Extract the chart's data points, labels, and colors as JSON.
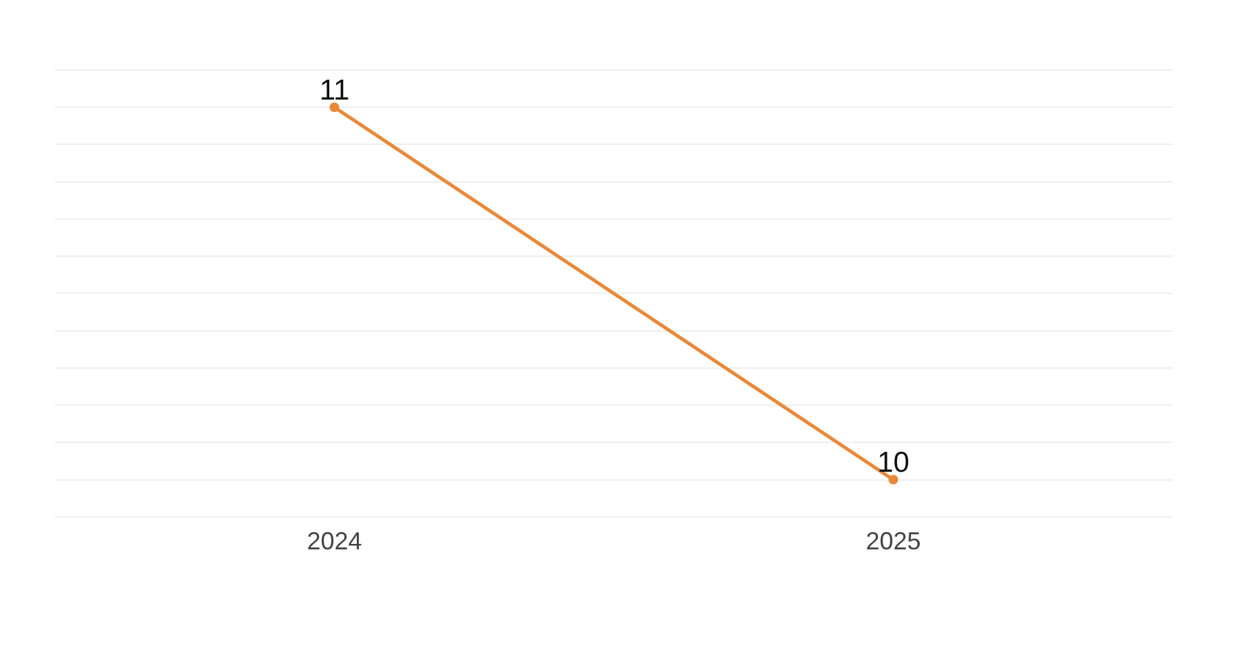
{
  "chart_data": {
    "type": "line",
    "categories": [
      "2024",
      "2025"
    ],
    "series": [
      {
        "color": "#e8893a",
        "values": [
          11,
          10
        ]
      }
    ],
    "ylim": [
      9.9,
      11.1
    ],
    "yticks": [
      {
        "value": 9.9,
        "label": null
      },
      {
        "value": 10,
        "label": null
      },
      {
        "value": 10.1,
        "label": null
      },
      {
        "value": 10.2,
        "label": null
      },
      {
        "value": 10.3,
        "label": null
      },
      {
        "value": 10.4,
        "label": null
      },
      {
        "value": 10.5,
        "label": null
      },
      {
        "value": 10.6,
        "label": null
      },
      {
        "value": 10.7,
        "label": null
      },
      {
        "value": 10.8,
        "label": null
      },
      {
        "value": 10.9,
        "label": null
      },
      {
        "value": 11,
        "label": null
      },
      {
        "value": 11.1,
        "label": null
      }
    ],
    "grid": "y",
    "tick_labels": "x",
    "data_labels": true,
    "marker": "circle",
    "line_style": "solid",
    "legend": false
  }
}
